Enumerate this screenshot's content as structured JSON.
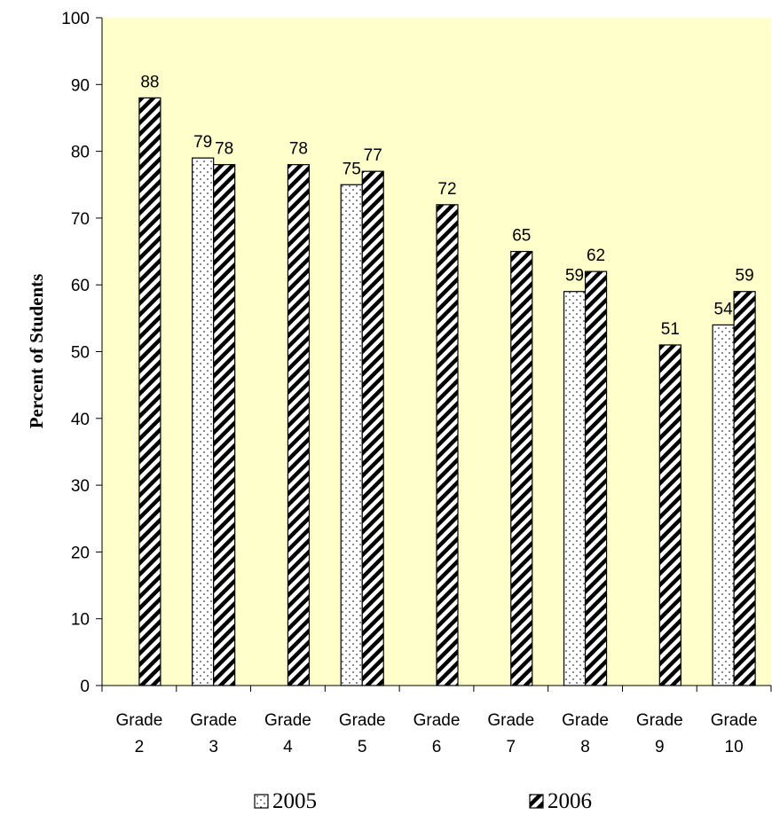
{
  "chart_data": {
    "type": "bar",
    "title": "",
    "xlabel": "",
    "ylabel": "Percent of Students",
    "ylim": [
      0,
      100
    ],
    "yticks": [
      0,
      10,
      20,
      30,
      40,
      50,
      60,
      70,
      80,
      90,
      100
    ],
    "categories": [
      [
        "Grade",
        "2"
      ],
      [
        "Grade",
        "3"
      ],
      [
        "Grade",
        "4"
      ],
      [
        "Grade",
        "5"
      ],
      [
        "Grade",
        "6"
      ],
      [
        "Grade",
        "7"
      ],
      [
        "Grade",
        "8"
      ],
      [
        "Grade",
        "9"
      ],
      [
        "Grade",
        "10"
      ]
    ],
    "series": [
      {
        "name": "2005",
        "values": [
          null,
          79,
          null,
          75,
          null,
          null,
          59,
          null,
          54
        ],
        "pattern": "dots"
      },
      {
        "name": "2006",
        "values": [
          88,
          78,
          78,
          77,
          72,
          65,
          62,
          51,
          59
        ],
        "pattern": "diagonal-stripes"
      }
    ],
    "legend_position": "bottom",
    "colors": {
      "plot_background": "#ffffcc",
      "bar_stroke": "#000000",
      "bar_fill": "#ffffff"
    }
  }
}
